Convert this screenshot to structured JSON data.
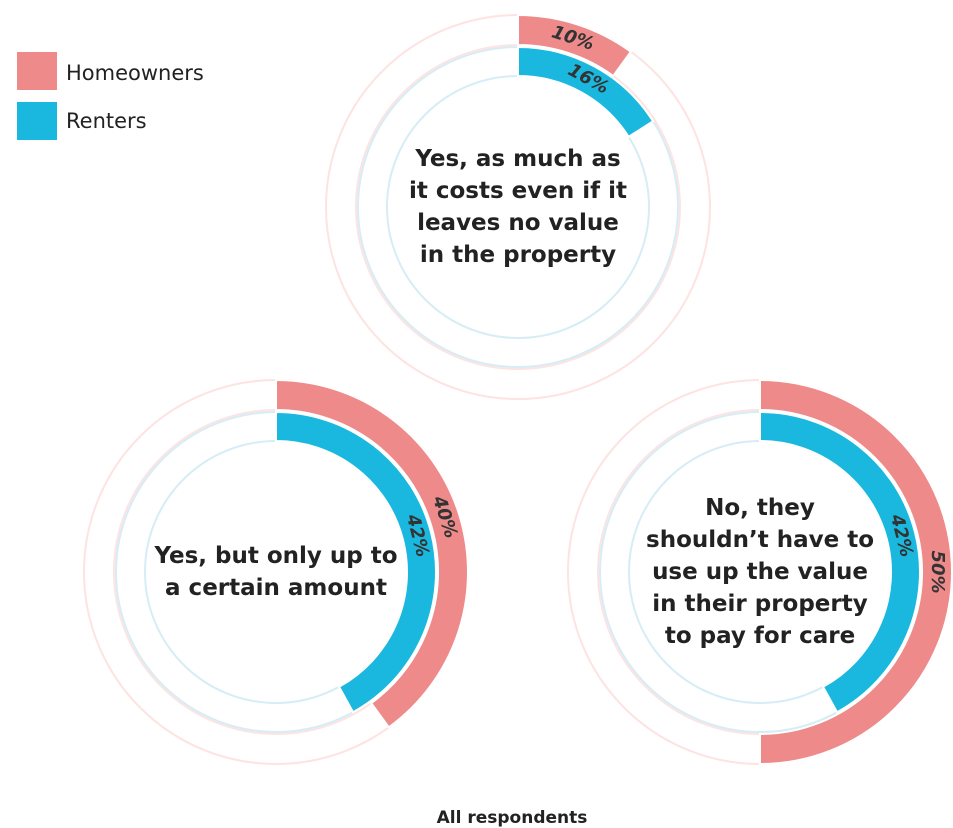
{
  "chart_data": {
    "type": "radial-bar",
    "categories": [
      "Yes, as much as it costs even if it leaves no value in the property",
      "Yes, but only up to a certain amount",
      "No, they shouldn’t have to use up the value in their property to pay for care"
    ],
    "series": [
      {
        "name": "Homeowners",
        "color": "#ee8a8a",
        "track": "#fde3e1",
        "values": [
          10,
          40,
          50
        ],
        "value_labels": [
          "10%",
          "40%",
          "50%"
        ]
      },
      {
        "name": "Renters",
        "color": "#1ab8de",
        "track": "#d6edf5",
        "values": [
          16,
          42,
          42
        ],
        "value_labels": [
          "16%",
          "42%",
          "42%"
        ]
      }
    ],
    "ylim": [
      0,
      100
    ],
    "caption": "All respondents"
  }
}
